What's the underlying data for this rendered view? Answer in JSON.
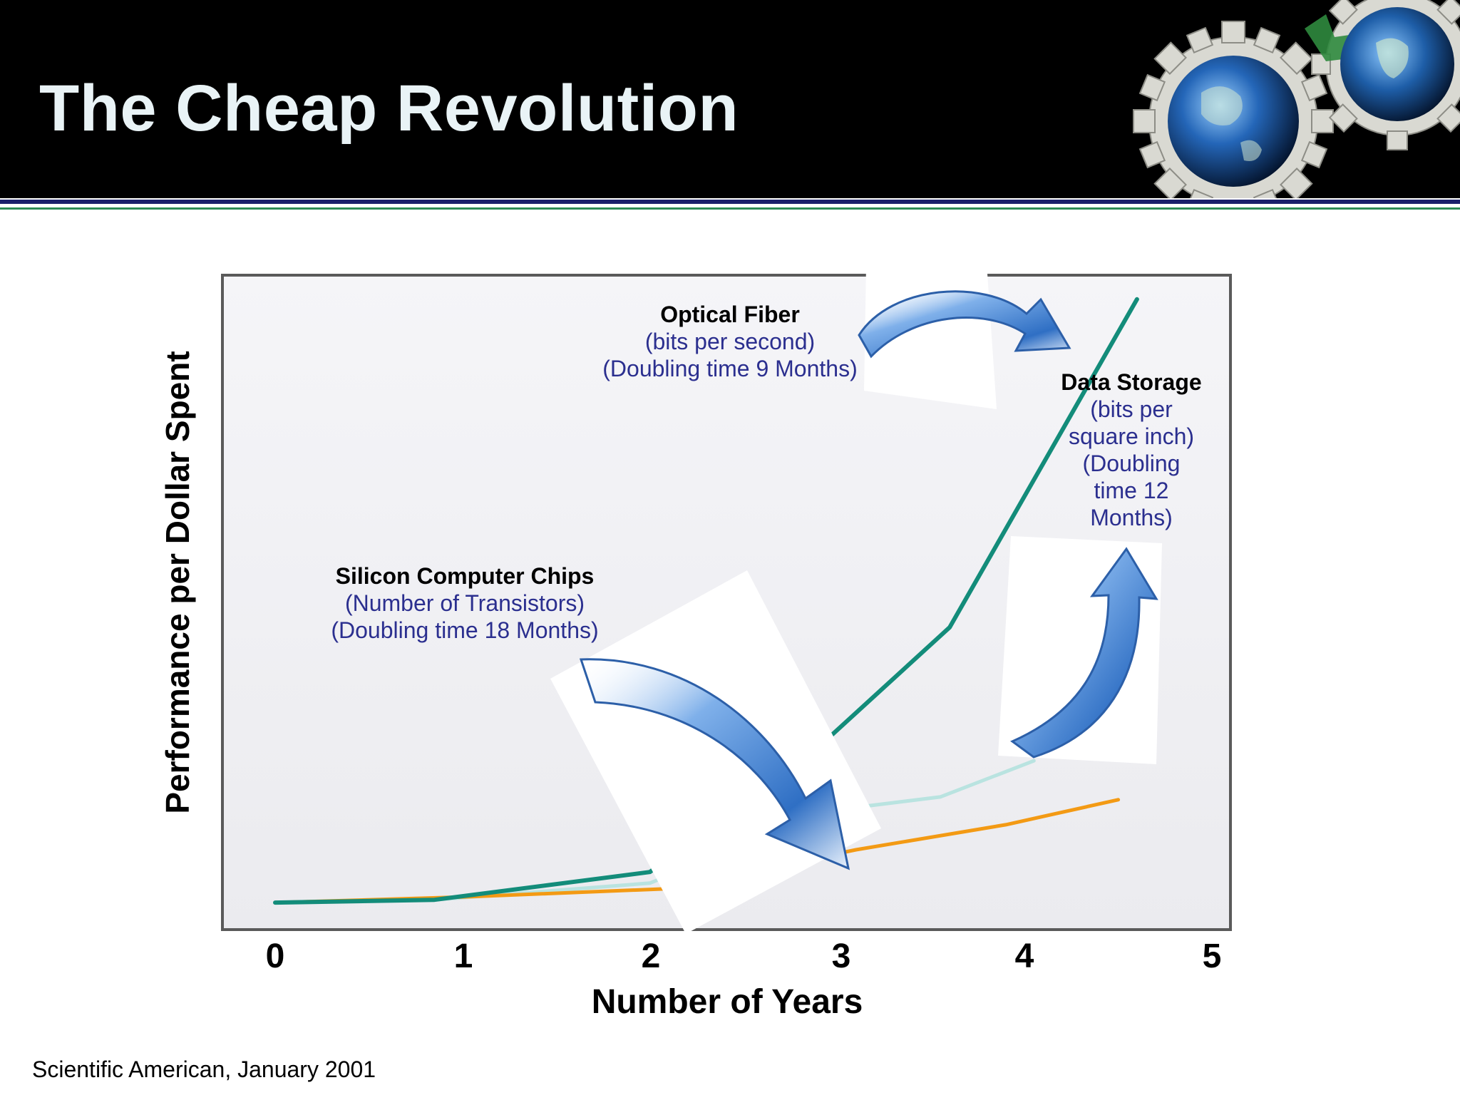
{
  "slide": {
    "title": "The Cheap Revolution",
    "source": "Scientific American, January 2001",
    "colors": {
      "header_bg": "#000000",
      "title": "#e9f3f6",
      "rule_blue": "#1a1f6b",
      "rule_green": "#2e8b57",
      "note_text": "#2b2f8f",
      "arrow": "#2f6fc4"
    },
    "decor": {
      "header_art": "gears-and-globes-icon",
      "callout_arrows": "curved-arrow-icon"
    }
  },
  "chart_data": {
    "type": "line",
    "xlabel": "Number of Years",
    "ylabel": "Performance per Dollar Spent",
    "xticks": [
      "0",
      "1",
      "2",
      "3",
      "4",
      "5"
    ],
    "xlim": [
      0,
      5
    ],
    "ylim": [
      0,
      100
    ],
    "grid": false,
    "legend": "none",
    "series": [
      {
        "name": "Optical Fiber",
        "color": "#138c7a",
        "x": [
          0.0,
          0.85,
          2.0,
          2.95,
          3.6,
          4.6
        ],
        "y": [
          0.5,
          1.0,
          6,
          30,
          50,
          109
        ]
      },
      {
        "name": "Data Storage",
        "color": "#b9e3e0",
        "x": [
          0.0,
          0.85,
          2.0,
          2.95,
          3.55,
          4.05
        ],
        "y": [
          0.5,
          1.0,
          4,
          17,
          19.5,
          26
        ]
      },
      {
        "name": "Silicon Computer Chips",
        "color": "#f39a14",
        "x": [
          0.0,
          1.0,
          2.1,
          3.1,
          3.9,
          4.5
        ],
        "y": [
          0.5,
          1.5,
          3,
          10,
          14.5,
          19
        ]
      }
    ],
    "annotations": [
      {
        "title": "Optical Fiber",
        "lines": [
          "(bits per second)",
          "(Doubling time 9 Months)"
        ]
      },
      {
        "title": "Data Storage",
        "lines": [
          "(bits per",
          "square inch)",
          "(Doubling",
          "time 12",
          "Months)"
        ]
      },
      {
        "title": "Silicon Computer Chips",
        "lines": [
          "(Number of Transistors)",
          "(Doubling time 18 Months)"
        ]
      }
    ]
  }
}
